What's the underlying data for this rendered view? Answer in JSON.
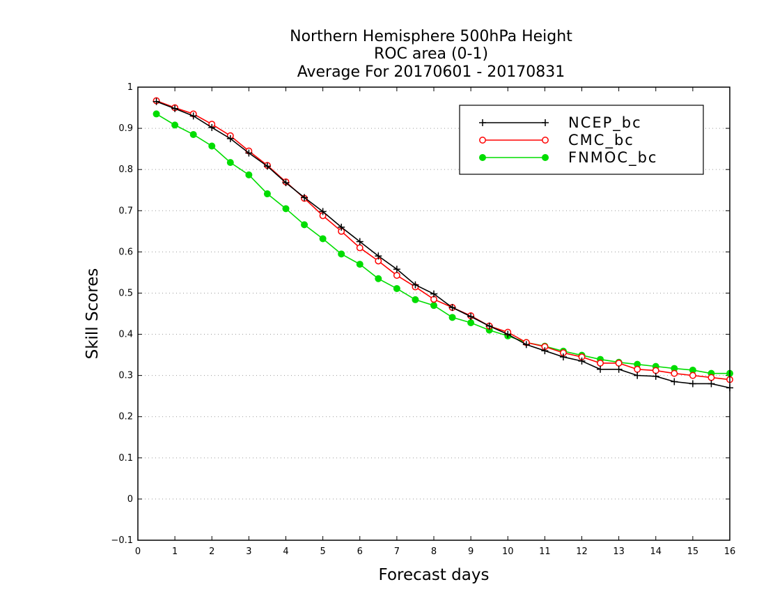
{
  "chart_data": {
    "type": "line",
    "title": [
      "Northern Hemisphere 500hPa Height",
      "ROC area (0-1)",
      "Average For 20170601 - 20170831"
    ],
    "xlabel": "Forecast days",
    "ylabel": "Skill Scores",
    "xlim": [
      0,
      16
    ],
    "ylim": [
      -0.1,
      1
    ],
    "xticks": [
      "0",
      "1",
      "2",
      "3",
      "4",
      "5",
      "6",
      "7",
      "8",
      "9",
      "10",
      "11",
      "12",
      "13",
      "14",
      "15",
      "16"
    ],
    "yticks": [
      "−0.1",
      "0",
      "0.1",
      "0.2",
      "0.3",
      "0.4",
      "0.5",
      "0.6",
      "0.7",
      "0.8",
      "0.9",
      "1"
    ],
    "grid": "horizontal dotted",
    "legend_position": "top-right",
    "x": [
      0.5,
      1,
      1.5,
      2,
      2.5,
      3,
      3.5,
      4,
      4.5,
      5,
      5.5,
      6,
      6.5,
      7,
      7.5,
      8,
      8.5,
      9,
      9.5,
      10,
      10.5,
      11,
      11.5,
      12,
      12.5,
      13,
      13.5,
      14,
      14.5,
      15,
      15.5,
      16
    ],
    "series": [
      {
        "name": "NCEP_bc",
        "color": "#000000",
        "marker": "plus",
        "values": [
          0.965,
          0.948,
          0.93,
          0.902,
          0.875,
          0.84,
          0.808,
          0.768,
          0.732,
          0.698,
          0.66,
          0.625,
          0.59,
          0.558,
          0.52,
          0.498,
          0.465,
          0.443,
          0.42,
          0.4,
          0.375,
          0.36,
          0.345,
          0.335,
          0.315,
          0.315,
          0.3,
          0.298,
          0.285,
          0.28,
          0.28,
          0.27
        ]
      },
      {
        "name": "CMC_bc",
        "color": "#ff0000",
        "marker": "open-circle",
        "values": [
          0.967,
          0.95,
          0.935,
          0.91,
          0.882,
          0.845,
          0.81,
          0.77,
          0.73,
          0.688,
          0.65,
          0.61,
          0.578,
          0.543,
          0.515,
          0.485,
          0.465,
          0.445,
          0.42,
          0.405,
          0.38,
          0.37,
          0.355,
          0.345,
          0.33,
          0.33,
          0.315,
          0.312,
          0.305,
          0.3,
          0.295,
          0.29
        ]
      },
      {
        "name": "FNMOC_bc",
        "color": "#00dd00",
        "marker": "filled-circle",
        "values": [
          0.935,
          0.908,
          0.885,
          0.857,
          0.817,
          0.787,
          0.741,
          0.705,
          0.666,
          0.632,
          0.595,
          0.57,
          0.535,
          0.511,
          0.484,
          0.47,
          0.441,
          0.428,
          0.41,
          0.396,
          0.38,
          0.371,
          0.359,
          0.349,
          0.339,
          0.332,
          0.327,
          0.322,
          0.317,
          0.313,
          0.305,
          0.305
        ]
      }
    ]
  }
}
